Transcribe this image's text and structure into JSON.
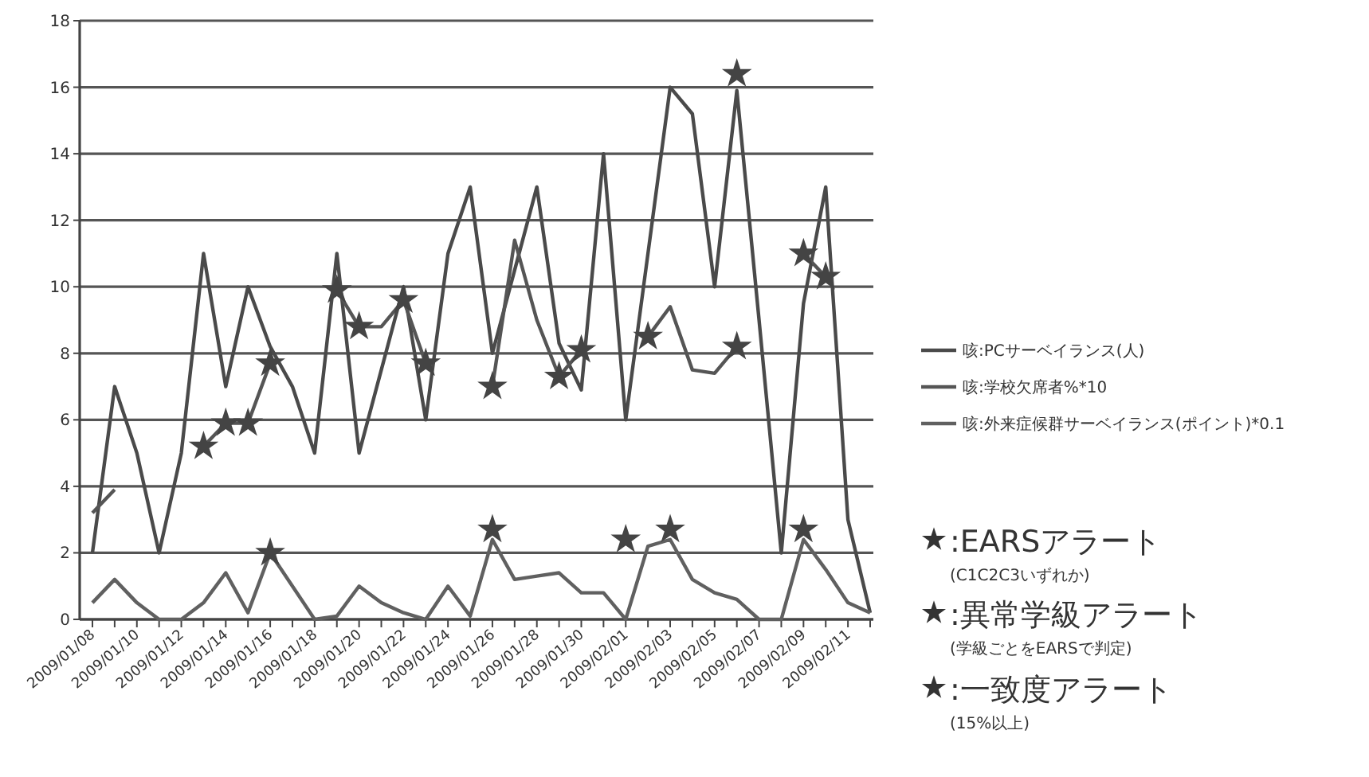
{
  "chart_data": {
    "type": "line",
    "categories": [
      "2009/01/08",
      null,
      "2009/01/10",
      null,
      "2009/01/12",
      null,
      "2009/01/14",
      null,
      "2009/01/16",
      null,
      "2009/01/18",
      null,
      "2009/01/20",
      null,
      "2009/01/22",
      null,
      "2009/01/24",
      null,
      "2009/01/26",
      null,
      "2009/01/28",
      null,
      "2009/01/30",
      null,
      "2009/02/01",
      null,
      "2009/02/03",
      null,
      "2009/02/05",
      null,
      "2009/02/07",
      null,
      "2009/02/09",
      null,
      "2009/02/11",
      null
    ],
    "series": [
      {
        "name": "咳:PCサーベイランス(人)",
        "color": "#4a4a4a",
        "values": [
          2,
          7,
          5,
          2,
          5,
          11,
          7,
          10,
          8.2,
          7,
          5,
          11,
          5,
          7.5,
          10,
          6,
          11,
          13,
          8,
          10.5,
          13,
          8.3,
          6.9,
          14,
          6,
          11,
          16,
          15.2,
          10,
          15.9,
          9,
          2,
          9.5,
          13,
          3,
          0.2
        ]
      },
      {
        "name": "咳:学校欠席者%*10",
        "color": "#555555",
        "values": [
          3.2,
          3.9,
          null,
          null,
          null,
          5.2,
          5.9,
          5.9,
          7.7,
          null,
          null,
          9.9,
          8.8,
          8.8,
          9.6,
          7.7,
          null,
          null,
          7,
          11.4,
          9,
          7.3,
          8.1,
          null,
          null,
          8.5,
          9.4,
          7.5,
          7.4,
          8.2,
          null,
          null,
          11,
          10.3,
          null,
          null
        ]
      },
      {
        "name": "咳:外来症候群サーベイランス(ポイント)*0.1",
        "color": "#606060",
        "values": [
          0.5,
          1.2,
          0.5,
          0,
          0,
          0.5,
          1.4,
          0.2,
          2,
          1,
          0,
          0.1,
          1,
          0.5,
          0.2,
          0,
          1,
          0.1,
          2.4,
          1.2,
          1.3,
          1.4,
          0.8,
          0.8,
          0,
          2.2,
          2.4,
          1.2,
          0.8,
          0.6,
          0,
          0,
          2.4,
          1.5,
          0.5,
          0.2
        ]
      },
      {
        "type": "scatter",
        "marker": "star",
        "color": "#444444",
        "values": [
          null,
          null,
          null,
          null,
          null,
          null,
          null,
          null,
          null,
          null,
          null,
          null,
          null,
          null,
          null,
          null,
          null,
          null,
          null,
          null,
          null,
          null,
          null,
          null,
          null,
          null,
          null,
          null,
          null,
          16.4,
          null,
          null,
          null,
          null,
          null,
          null
        ]
      },
      {
        "type": "scatter",
        "marker": "star",
        "color": "#444444",
        "values": [
          null,
          null,
          null,
          null,
          null,
          5.2,
          5.9,
          5.9,
          7.7,
          null,
          null,
          9.9,
          8.8,
          null,
          9.6,
          7.7,
          null,
          null,
          7,
          null,
          null,
          7.3,
          8.1,
          null,
          null,
          8.5,
          null,
          null,
          null,
          8.2,
          null,
          null,
          11,
          10.3,
          null,
          null
        ]
      },
      {
        "type": "scatter",
        "marker": "star",
        "color": "#444444",
        "values": [
          null,
          null,
          null,
          null,
          null,
          null,
          null,
          null,
          2,
          null,
          null,
          null,
          null,
          null,
          null,
          null,
          null,
          null,
          2.7,
          null,
          null,
          null,
          null,
          null,
          2.4,
          null,
          2.7,
          null,
          null,
          null,
          null,
          null,
          2.7,
          null,
          null,
          null
        ]
      }
    ],
    "ylim": [
      0,
      18
    ],
    "yticks": [
      0,
      2,
      4,
      6,
      8,
      10,
      12,
      14,
      16,
      18
    ],
    "grid": "y",
    "legend": "right",
    "marker": "none",
    "line_style": "solid",
    "annotations": [
      ":EARSアラート",
      "(C1C2C3いずれか)",
      ":異常学級アラート",
      "(学級ごとをEARSで判定)",
      ":一致度アラート",
      "(15%以上)"
    ]
  }
}
